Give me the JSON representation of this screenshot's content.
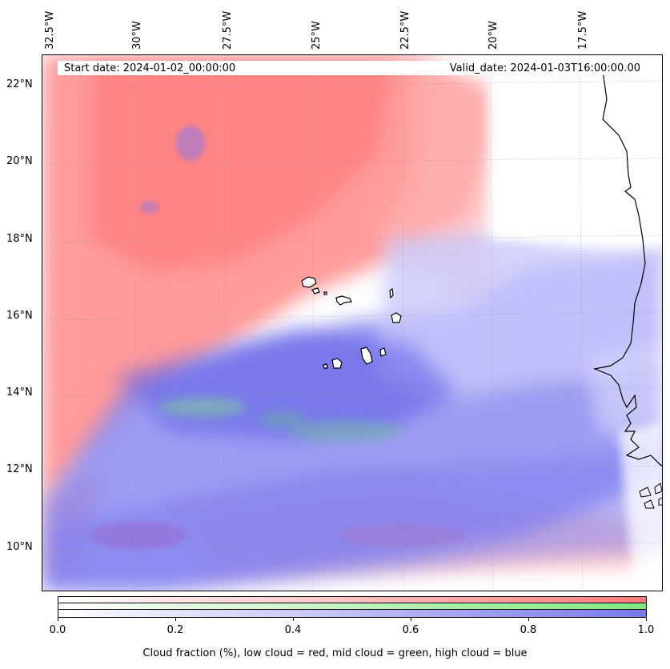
{
  "map": {
    "start_date": "Start date: 2024-01-02_00:00:00",
    "valid_date": "Valid_date: 2024-01-03T16:00:00.00",
    "lon_labels": [
      "32.5°W",
      "30°W",
      "27.5°W",
      "25°W",
      "22.5°W",
      "20°W",
      "17.5°W"
    ],
    "lat_labels": [
      "22°N",
      "20°N",
      "18°N",
      "16°N",
      "14°N",
      "12°N",
      "10°N"
    ],
    "layers": [
      "low cloud",
      "mid cloud",
      "high cloud"
    ],
    "colors": {
      "low": "#ff7f7f",
      "mid": "#8fef8f",
      "high": "#7f7fef",
      "coast": "#000000"
    }
  },
  "colorbar": {
    "ticks": [
      "0.0",
      "0.2",
      "0.4",
      "0.6",
      "0.8",
      "1.0"
    ],
    "caption": "Cloud fraction (%), low cloud = red, mid cloud = green, high cloud = blue"
  }
}
